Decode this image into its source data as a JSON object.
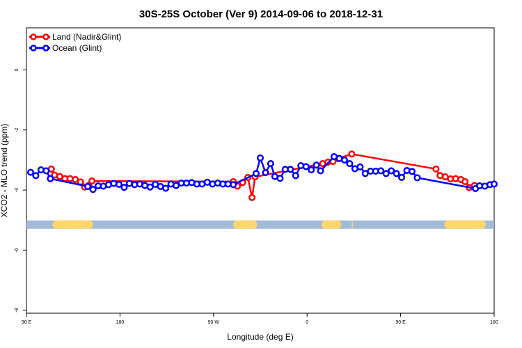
{
  "chart_data": {
    "type": "line",
    "title": "30S-25S October (Ver 9)   2014-09-06 to 2018-12-31",
    "xlabel": "Longitude (deg E)",
    "ylabel": "XCO2 - MLO trend (ppm)",
    "x_ticks": [
      {
        "value": 90,
        "label": "90 E"
      },
      {
        "value": 180,
        "label": "180"
      },
      {
        "value": 270,
        "label": "90 W"
      },
      {
        "value": 360,
        "label": "0"
      },
      {
        "value": 450,
        "label": "90 E"
      },
      {
        "value": 540,
        "label": "180"
      }
    ],
    "y_ticks": [
      0,
      -2,
      -4,
      -6,
      -8
    ],
    "xlim": [
      90,
      540
    ],
    "ylim": [
      -8.1,
      1.4
    ],
    "legend_position": "top-left",
    "colors": {
      "land": "#ff0000",
      "ocean": "#0000ff",
      "land_band": "#ffd66b",
      "ocean_band": "#a3bbd9"
    },
    "series": [
      {
        "name": "Land (Nadir&Glint)",
        "color": "#ff0000",
        "points": [
          [
            114,
            -3.3
          ],
          [
            117,
            -3.5
          ],
          [
            122,
            -3.55
          ],
          [
            127,
            -3.62
          ],
          [
            132,
            -3.62
          ],
          [
            137,
            -3.65
          ],
          [
            142,
            -3.73
          ],
          [
            146,
            -3.9
          ],
          [
            150,
            -3.85
          ],
          [
            153,
            -3.7
          ],
          [
            289,
            -3.72
          ],
          [
            293,
            -3.87
          ],
          [
            298,
            -3.75
          ],
          [
            303,
            -3.58
          ],
          [
            307,
            -4.25
          ],
          [
            310,
            -3.56
          ],
          [
            375,
            -3.12
          ],
          [
            380,
            -3.07
          ],
          [
            385,
            -3.05
          ],
          [
            390,
            -2.95
          ],
          [
            403,
            -2.8
          ],
          [
            484,
            -3.3
          ],
          [
            488,
            -3.52
          ],
          [
            493,
            -3.56
          ],
          [
            498,
            -3.63
          ],
          [
            503,
            -3.62
          ],
          [
            508,
            -3.65
          ],
          [
            512,
            -3.72
          ],
          [
            516,
            -3.92
          ],
          [
            521,
            -3.85
          ]
        ]
      },
      {
        "name": "Ocean (Glint)",
        "color": "#0000ff",
        "points": [
          [
            94,
            -3.41
          ],
          [
            99,
            -3.52
          ],
          [
            104,
            -3.33
          ],
          [
            109,
            -3.36
          ],
          [
            113,
            -3.62
          ],
          [
            149,
            -3.88
          ],
          [
            154,
            -3.98
          ],
          [
            159,
            -3.86
          ],
          [
            164,
            -3.87
          ],
          [
            169,
            -3.82
          ],
          [
            174,
            -3.78
          ],
          [
            179,
            -3.81
          ],
          [
            184,
            -3.91
          ],
          [
            189,
            -3.78
          ],
          [
            194,
            -3.82
          ],
          [
            199,
            -3.8
          ],
          [
            204,
            -3.85
          ],
          [
            209,
            -3.9
          ],
          [
            214,
            -3.81
          ],
          [
            219,
            -3.88
          ],
          [
            224,
            -3.94
          ],
          [
            229,
            -3.8
          ],
          [
            234,
            -3.85
          ],
          [
            239,
            -3.77
          ],
          [
            244,
            -3.77
          ],
          [
            249,
            -3.75
          ],
          [
            254,
            -3.8
          ],
          [
            259,
            -3.8
          ],
          [
            264,
            -3.74
          ],
          [
            269,
            -3.8
          ],
          [
            274,
            -3.77
          ],
          [
            279,
            -3.8
          ],
          [
            284,
            -3.8
          ],
          [
            289,
            -3.82
          ],
          [
            311,
            -3.45
          ],
          [
            315,
            -2.93
          ],
          [
            320,
            -3.42
          ],
          [
            325,
            -3.12
          ],
          [
            329,
            -3.55
          ],
          [
            334,
            -3.61
          ],
          [
            339,
            -3.31
          ],
          [
            344,
            -3.31
          ],
          [
            349,
            -3.52
          ],
          [
            354,
            -3.19
          ],
          [
            359,
            -3.22
          ],
          [
            364,
            -3.33
          ],
          [
            369,
            -3.17
          ],
          [
            373,
            -3.36
          ],
          [
            386,
            -2.89
          ],
          [
            391,
            -2.95
          ],
          [
            396,
            -3.0
          ],
          [
            401,
            -3.12
          ],
          [
            406,
            -3.29
          ],
          [
            411,
            -3.23
          ],
          [
            416,
            -3.45
          ],
          [
            421,
            -3.37
          ],
          [
            426,
            -3.37
          ],
          [
            431,
            -3.36
          ],
          [
            436,
            -3.45
          ],
          [
            441,
            -3.36
          ],
          [
            446,
            -3.45
          ],
          [
            451,
            -3.58
          ],
          [
            456,
            -3.35
          ],
          [
            461,
            -3.38
          ],
          [
            466,
            -3.59
          ],
          [
            522,
            -3.95
          ],
          [
            526,
            -3.86
          ],
          [
            531,
            -3.87
          ],
          [
            536,
            -3.82
          ],
          [
            540,
            -3.8
          ]
        ]
      }
    ],
    "surface_band": {
      "y": -5.15,
      "land_segments": [
        [
          115,
          154
        ],
        [
          289,
          312
        ],
        [
          374,
          393
        ],
        [
          403,
          404
        ],
        [
          492,
          532
        ]
      ]
    }
  }
}
